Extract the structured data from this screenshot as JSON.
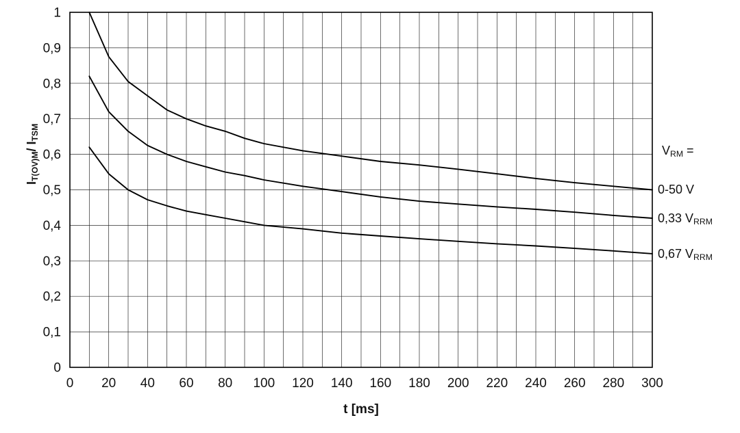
{
  "chart_data": {
    "type": "line",
    "title": "",
    "xlabel": "t [ms]",
    "ylabel": "I_T(OV)M / I_TSM",
    "xlim": [
      0,
      300
    ],
    "ylim": [
      0,
      1
    ],
    "grid": {
      "on": true,
      "x_step": 10,
      "y_step": 0.1
    },
    "legend_position": "right",
    "x": [
      10,
      20,
      30,
      40,
      50,
      60,
      70,
      80,
      90,
      100,
      120,
      140,
      160,
      180,
      200,
      220,
      240,
      260,
      280,
      300
    ],
    "series": [
      {
        "name": "0-50 V",
        "values": [
          1.0,
          0.875,
          0.805,
          0.765,
          0.725,
          0.7,
          0.68,
          0.665,
          0.645,
          0.63,
          0.61,
          0.595,
          0.58,
          0.57,
          0.558,
          0.545,
          0.532,
          0.52,
          0.51,
          0.5
        ]
      },
      {
        "name": "0,33 V_RRM",
        "values": [
          0.82,
          0.72,
          0.665,
          0.625,
          0.6,
          0.58,
          0.565,
          0.55,
          0.54,
          0.528,
          0.51,
          0.495,
          0.48,
          0.468,
          0.46,
          0.452,
          0.445,
          0.437,
          0.428,
          0.42
        ]
      },
      {
        "name": "0,67 V_RRM",
        "values": [
          0.62,
          0.545,
          0.5,
          0.472,
          0.455,
          0.44,
          0.43,
          0.42,
          0.41,
          0.4,
          0.39,
          0.378,
          0.37,
          0.362,
          0.355,
          0.348,
          0.342,
          0.335,
          0.328,
          0.32
        ]
      }
    ],
    "xtick_values": [
      0,
      20,
      40,
      60,
      80,
      100,
      120,
      140,
      160,
      180,
      200,
      220,
      240,
      260,
      280,
      300
    ],
    "xtick_labels": [
      "0",
      "20",
      "40",
      "60",
      "80",
      "100",
      "120",
      "140",
      "160",
      "180",
      "200",
      "220",
      "240",
      "260",
      "280",
      "300"
    ],
    "ytick_values": [
      0,
      0.1,
      0.2,
      0.3,
      0.4,
      0.5,
      0.6,
      0.7,
      0.8,
      0.9,
      1
    ],
    "ytick_labels": [
      "0",
      "0,1",
      "0,2",
      "0,3",
      "0,4",
      "0,5",
      "0,6",
      "0,7",
      "0,8",
      "0,9",
      "1"
    ]
  },
  "labels": {
    "xlabel": "t [ms]",
    "ylabel": {
      "p1": "I",
      "s1": "T(OV)M",
      "p2": "/ I",
      "s2": "TSM"
    },
    "legend": {
      "title": {
        "main": "V",
        "sub": "RM",
        "suffix": " ="
      },
      "items": [
        {
          "main": "0-50 V",
          "sub": ""
        },
        {
          "main": "0,33 V",
          "sub": "RRM"
        },
        {
          "main": "0,67 V",
          "sub": "RRM"
        }
      ]
    }
  },
  "colors": {
    "curve": "#000000",
    "grid": "#2b2b2b",
    "frame": "#000000",
    "text": "#111111"
  }
}
